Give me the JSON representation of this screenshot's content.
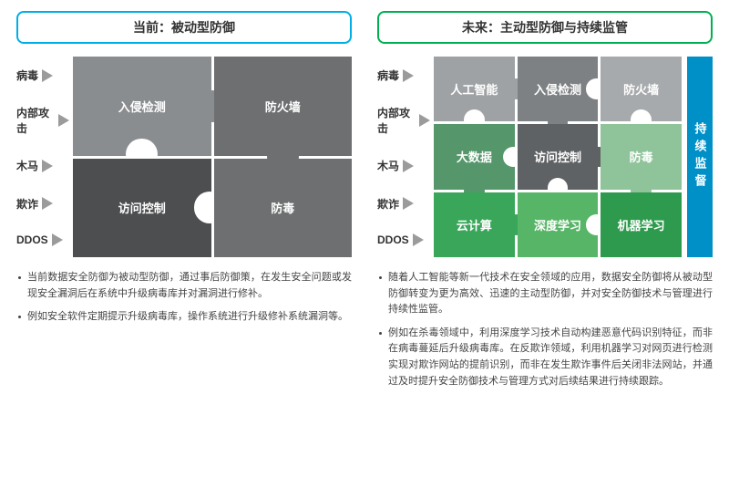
{
  "left": {
    "title": "当前：被动型防御",
    "title_border": "#00aee6",
    "threats": [
      "病毒",
      "内部攻击",
      "木马",
      "欺诈",
      "DDOS"
    ],
    "grid": {
      "type": "puzzle-2x2",
      "rows": 2,
      "cols": 2,
      "cells": [
        {
          "label": "入侵检测",
          "bg": "#8a8d8f"
        },
        {
          "label": "防火墙",
          "bg": "#6d6f71"
        },
        {
          "label": "访问控制",
          "bg": "#4c4e50"
        },
        {
          "label": "防毒",
          "bg": "#6d6f71"
        }
      ],
      "cell_text_color": "#ffffff",
      "gap_color": "#ffffff"
    },
    "bullets": [
      "当前数据安全防御为被动型防御，通过事后防御策，在发生安全问题或发现安全漏洞后在系统中升级病毒库并对漏洞进行修补。",
      "例如安全软件定期提示升级病毒库，操作系统进行升级修补系统漏洞等。"
    ]
  },
  "right": {
    "title": "未来：主动型防御与持续监管",
    "title_border": "#00b050",
    "threats": [
      "病毒",
      "内部攻击",
      "木马",
      "欺诈",
      "DDOS"
    ],
    "grid": {
      "type": "puzzle-3x3",
      "rows": 3,
      "cols": 3,
      "cells": [
        {
          "label": "人工智能",
          "bg": "#9fa2a4"
        },
        {
          "label": "入侵检测",
          "bg": "#7e8183"
        },
        {
          "label": "防火墙",
          "bg": "#a7aaac"
        },
        {
          "label": "大数据",
          "bg": "#55976a"
        },
        {
          "label": "访问控制",
          "bg": "#5f6264"
        },
        {
          "label": "防毒",
          "bg": "#8fc49a"
        },
        {
          "label": "云计算",
          "bg": "#3aa65a"
        },
        {
          "label": "深度学习",
          "bg": "#57b567"
        },
        {
          "label": "机器学习",
          "bg": "#2e9a4d"
        }
      ],
      "cell_text_color": "#ffffff",
      "gap_color": "#ffffff"
    },
    "monitor": {
      "label": "持续监督",
      "bg": "#0090c8",
      "text": "#ffffff"
    },
    "bullets": [
      "随着人工智能等新一代技术在安全领域的应用，数据安全防御将从被动型防御转变为更为高效、迅速的主动型防御，并对安全防御技术与管理进行持续性监管。",
      "例如在杀毒领域中，利用深度学习技术自动构建恶意代码识别特征，而非在病毒蔓延后升级病毒库。在反欺诈领域，利用机器学习对网页进行检测实现对欺诈网站的提前识别，而非在发生欺诈事件后关闭非法网站，并通过及时提升安全防御技术与管理方式对后续结果进行持续跟踪。"
    ]
  },
  "arrow_color": "#9b9b9b",
  "background_color": "#ffffff"
}
